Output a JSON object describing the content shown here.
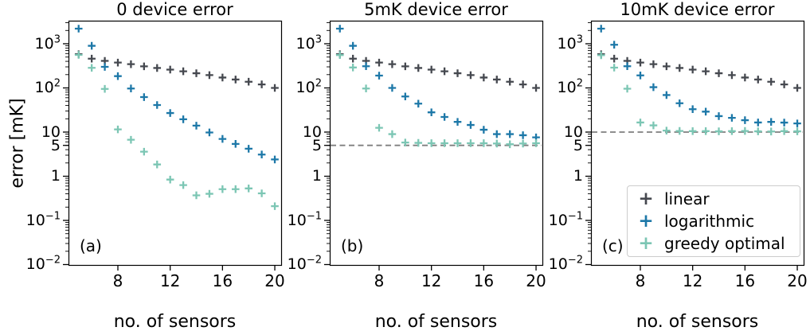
{
  "figure": {
    "ylabel": "error [mK]",
    "xlabel": "no. of sensors",
    "background": "#ffffff",
    "axis_color": "#000000",
    "device_error_line_color": "#7f7f7f"
  },
  "legend": {
    "marker": "+",
    "entries": [
      {
        "label": "linear",
        "color": "#45484f"
      },
      {
        "label": "logarithmic",
        "color": "#1d78a8"
      },
      {
        "label": "greedy optimal",
        "color": "#7cc6b4"
      }
    ]
  },
  "chart_data": [
    {
      "type": "scatter",
      "title": "0 device error",
      "panel_label": "(a)",
      "xlabel": "no. of sensors",
      "ylabel": "error [mK]",
      "yscale": "log",
      "xlim": [
        4.2,
        20.5
      ],
      "ylim": [
        0.01,
        3300
      ],
      "xticks": [
        8,
        12,
        16,
        20
      ],
      "yticks": [
        {
          "value": 1000,
          "base": "10",
          "sup": "3"
        },
        {
          "value": 100,
          "base": "10",
          "sup": "2"
        },
        {
          "value": 10,
          "base": "10",
          "sup": ""
        },
        {
          "value": 5,
          "base": "5",
          "sup": ""
        },
        {
          "value": 1,
          "base": "1",
          "sup": ""
        },
        {
          "value": 0.1,
          "base": "10",
          "sup": "−1"
        },
        {
          "value": 0.01,
          "base": "10",
          "sup": "−2"
        }
      ],
      "x": [
        5,
        6,
        7,
        8,
        9,
        10,
        11,
        12,
        13,
        14,
        15,
        16,
        17,
        18,
        19,
        20
      ],
      "dashed_line": null,
      "series": [
        {
          "name": "linear",
          "marker": "+",
          "color": "#45484f",
          "values": [
            580,
            460,
            410,
            375,
            345,
            308,
            283,
            260,
            238,
            215,
            195,
            172,
            155,
            138,
            120,
            100
          ]
        },
        {
          "name": "logarithmic",
          "marker": "+",
          "color": "#1d78a8",
          "values": [
            2200,
            900,
            300,
            185,
            97,
            62,
            41,
            27,
            19.5,
            14,
            9.8,
            7.0,
            5.4,
            4.2,
            3.1,
            2.4
          ]
        },
        {
          "name": "greedy optimal",
          "marker": "+",
          "color": "#7cc6b4",
          "values": [
            560,
            285,
            95,
            11.5,
            6.7,
            3.6,
            1.85,
            0.84,
            0.63,
            0.37,
            0.4,
            0.51,
            0.51,
            0.53,
            0.41,
            0.21
          ]
        }
      ]
    },
    {
      "type": "scatter",
      "title": "5mK device error",
      "panel_label": "(b)",
      "xlabel": "no. of sensors",
      "ylabel": "error [mK]",
      "yscale": "log",
      "xlim": [
        4.2,
        20.5
      ],
      "ylim": [
        0.01,
        3300
      ],
      "xticks": [
        8,
        12,
        16,
        20
      ],
      "yticks": [
        {
          "value": 1000,
          "base": "10",
          "sup": "3"
        },
        {
          "value": 100,
          "base": "10",
          "sup": "2"
        },
        {
          "value": 10,
          "base": "10",
          "sup": ""
        },
        {
          "value": 5,
          "base": "5",
          "sup": ""
        },
        {
          "value": 1,
          "base": "1",
          "sup": ""
        },
        {
          "value": 0.1,
          "base": "10",
          "sup": "−1"
        },
        {
          "value": 0.01,
          "base": "10",
          "sup": "−2"
        }
      ],
      "x": [
        5,
        6,
        7,
        8,
        9,
        10,
        11,
        12,
        13,
        14,
        15,
        16,
        17,
        18,
        19,
        20
      ],
      "dashed_line": 5,
      "series": [
        {
          "name": "linear",
          "marker": "+",
          "color": "#45484f",
          "values": [
            580,
            460,
            410,
            375,
            345,
            308,
            283,
            260,
            238,
            215,
            195,
            172,
            155,
            138,
            120,
            100
          ]
        },
        {
          "name": "logarithmic",
          "marker": "+",
          "color": "#1d78a8",
          "values": [
            2200,
            900,
            310,
            190,
            100,
            64,
            44,
            28,
            22,
            17,
            14.5,
            11.3,
            9.0,
            9.0,
            8.5,
            7.6
          ]
        },
        {
          "name": "greedy optimal",
          "marker": "+",
          "color": "#7cc6b4",
          "values": [
            555,
            290,
            97,
            12.5,
            9.0,
            5.8,
            5.7,
            5.6,
            5.6,
            5.6,
            5.6,
            5.6,
            5.5,
            5.3,
            5.5,
            5.6
          ]
        }
      ]
    },
    {
      "type": "scatter",
      "title": "10mK device error",
      "panel_label": "(c)",
      "xlabel": "no. of sensors",
      "ylabel": "error [mK]",
      "yscale": "log",
      "xlim": [
        4.2,
        20.5
      ],
      "ylim": [
        0.01,
        3300
      ],
      "xticks": [
        8,
        12,
        16,
        20
      ],
      "yticks": [
        {
          "value": 1000,
          "base": "10",
          "sup": "3"
        },
        {
          "value": 100,
          "base": "10",
          "sup": "2"
        },
        {
          "value": 10,
          "base": "10",
          "sup": ""
        },
        {
          "value": 5,
          "base": "5",
          "sup": ""
        },
        {
          "value": 1,
          "base": "1",
          "sup": ""
        },
        {
          "value": 0.1,
          "base": "10",
          "sup": "−1"
        },
        {
          "value": 0.01,
          "base": "10",
          "sup": "−2"
        }
      ],
      "x": [
        5,
        6,
        7,
        8,
        9,
        10,
        11,
        12,
        13,
        14,
        15,
        16,
        17,
        18,
        19,
        20
      ],
      "dashed_line": 10,
      "series": [
        {
          "name": "linear",
          "marker": "+",
          "color": "#45484f",
          "values": [
            580,
            460,
            410,
            375,
            345,
            308,
            283,
            260,
            238,
            215,
            195,
            172,
            155,
            138,
            120,
            100
          ]
        },
        {
          "name": "logarithmic",
          "marker": "+",
          "color": "#1d78a8",
          "values": [
            2200,
            950,
            310,
            192,
            104,
            69,
            45,
            33,
            29,
            23,
            21,
            18.6,
            16.5,
            17,
            16.4,
            15.7
          ]
        },
        {
          "name": "greedy optimal",
          "marker": "+",
          "color": "#7cc6b4",
          "values": [
            550,
            288,
            96,
            16.5,
            14.2,
            10.8,
            10.6,
            10.5,
            10.5,
            10.4,
            10.5,
            10.6,
            10.4,
            10.3,
            10.5,
            10.4
          ]
        }
      ]
    }
  ]
}
